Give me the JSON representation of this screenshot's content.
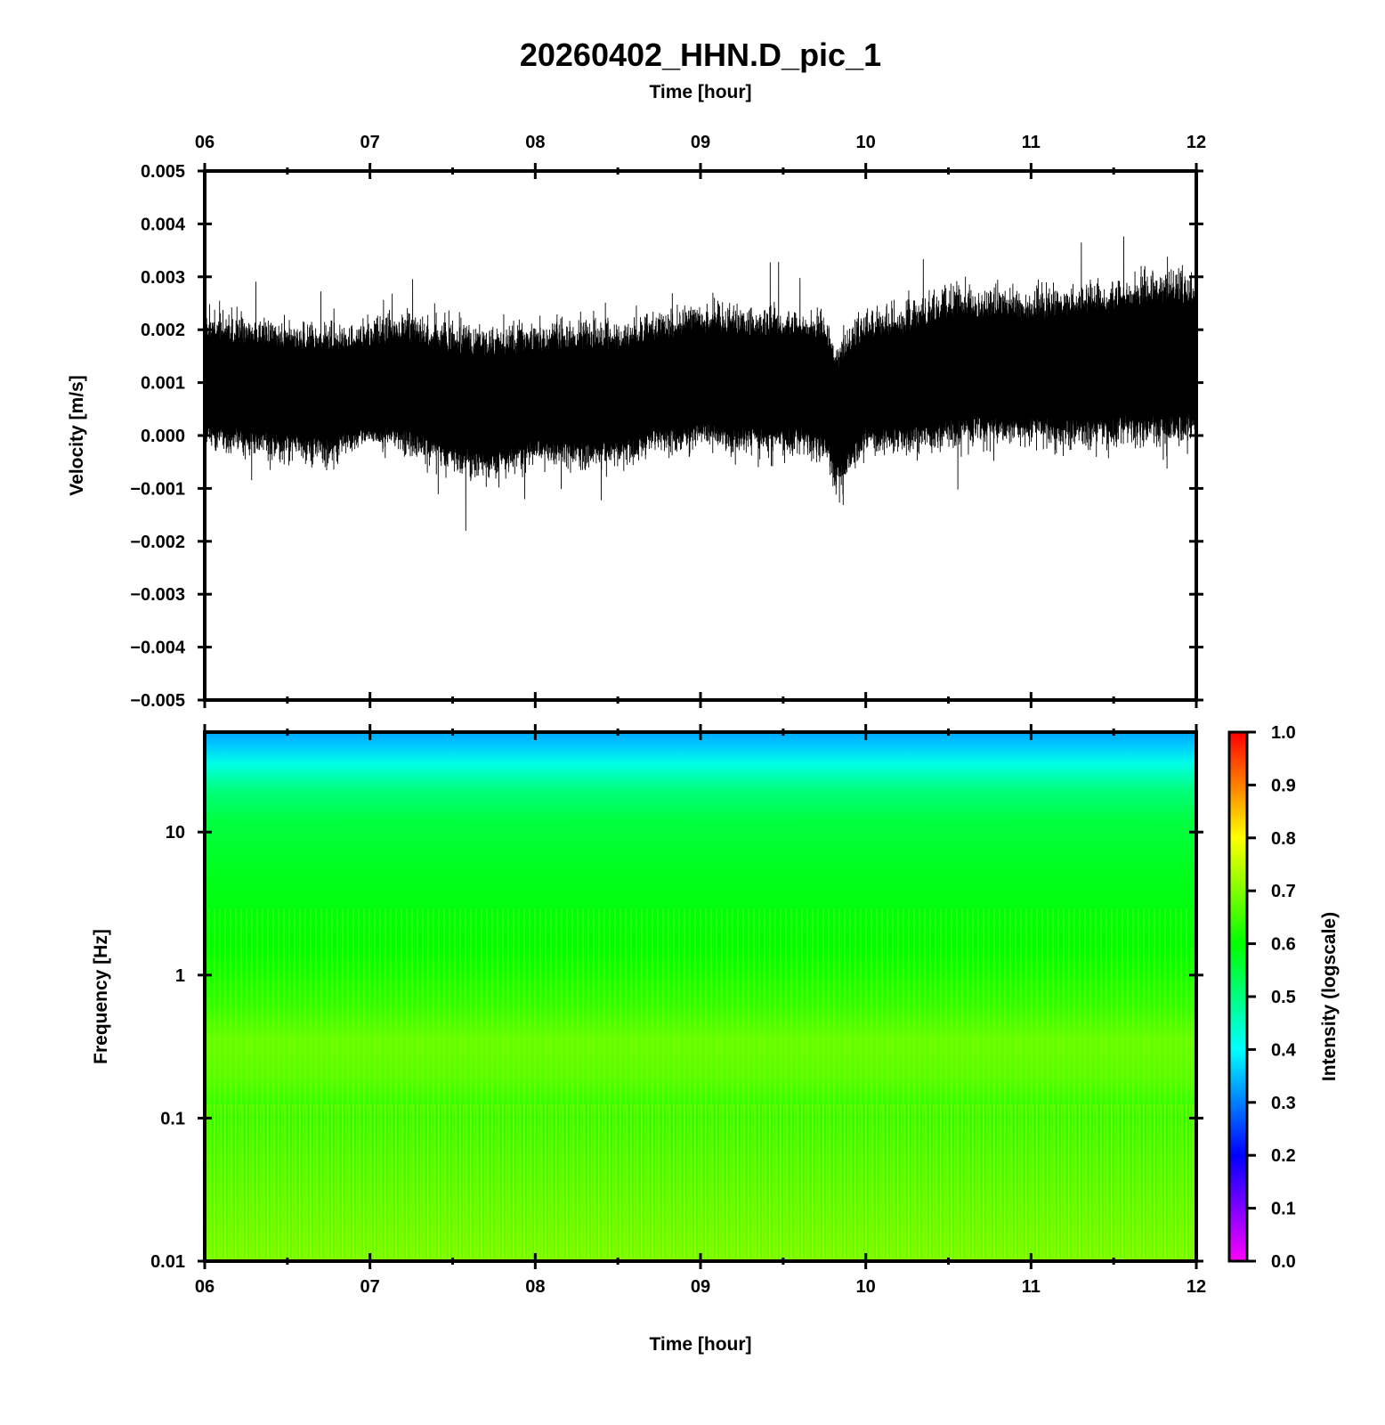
{
  "title": "20260402_HHN.D_pic_1",
  "chart_data": [
    {
      "type": "line",
      "panel": "waveform",
      "xlabel": "Time [hour]",
      "ylabel": "Velocity [m/s]",
      "x_ticks": [
        "06",
        "07",
        "08",
        "09",
        "10",
        "11",
        "12"
      ],
      "xlim": [
        6,
        12
      ],
      "y_ticks": [
        "0.005",
        "0.004",
        "0.003",
        "0.002",
        "0.001",
        "0.000",
        "−0.001",
        "−0.002",
        "−0.003",
        "−0.004",
        "−0.005"
      ],
      "ylim": [
        -0.005,
        0.005
      ],
      "grid": false,
      "series": [
        {
          "color": "#000000",
          "envelope": {
            "x": [
              6.0,
              6.25,
              6.5,
              6.75,
              7.0,
              7.25,
              7.5,
              7.75,
              8.0,
              8.25,
              8.5,
              8.75,
              9.0,
              9.25,
              9.5,
              9.75,
              9.82,
              10.0,
              10.25,
              10.5,
              10.75,
              11.0,
              11.25,
              11.5,
              11.75,
              12.0
            ],
            "center": [
              0.0009,
              0.0009,
              0.0008,
              0.0008,
              0.0008,
              0.0008,
              0.0006,
              0.0006,
              0.0007,
              0.0007,
              0.0007,
              0.0009,
              0.001,
              0.001,
              0.001,
              0.001,
              0.0004,
              0.0009,
              0.001,
              0.0012,
              0.0013,
              0.0013,
              0.0013,
              0.0013,
              0.0014,
              0.0014
            ],
            "upper": [
              0.0025,
              0.0024,
              0.0023,
              0.0022,
              0.0024,
              0.0025,
              0.0023,
              0.0022,
              0.0023,
              0.0024,
              0.0023,
              0.0025,
              0.0027,
              0.0026,
              0.0026,
              0.0025,
              0.0019,
              0.0026,
              0.0027,
              0.003,
              0.003,
              0.0029,
              0.003,
              0.0032,
              0.0034,
              0.0033
            ],
            "lower": [
              -0.0004,
              -0.0005,
              -0.0006,
              -0.0007,
              -0.0003,
              -0.0005,
              -0.0009,
              -0.001,
              -0.0007,
              -0.0008,
              -0.0007,
              -0.0005,
              -0.0004,
              -0.0005,
              -0.0005,
              -0.0007,
              -0.0013,
              -0.0005,
              -0.0005,
              -0.0004,
              -0.0004,
              -0.0004,
              -0.0005,
              -0.0004,
              -0.0004,
              -0.0004
            ],
            "peak_max": 0.0041,
            "peak_min": -0.0018
          }
        }
      ]
    },
    {
      "type": "heatmap",
      "panel": "spectrogram",
      "xlabel": "Time [hour]",
      "ylabel": "Frequency [Hz]",
      "x_ticks": [
        "06",
        "07",
        "08",
        "09",
        "10",
        "11",
        "12"
      ],
      "xlim": [
        6,
        12
      ],
      "y_scale": "log",
      "y_ticks": [
        "10",
        "1",
        "0.1",
        "0.01"
      ],
      "ylim": [
        0.01,
        50
      ],
      "color_scale": "rainbow",
      "intensity_by_frequency": [
        {
          "frequency": 50,
          "intensity": 0.33
        },
        {
          "frequency": 40,
          "intensity": 0.36
        },
        {
          "frequency": 30,
          "intensity": 0.42
        },
        {
          "frequency": 20,
          "intensity": 0.5
        },
        {
          "frequency": 12,
          "intensity": 0.55
        },
        {
          "frequency": 5,
          "intensity": 0.58
        },
        {
          "frequency": 1.5,
          "intensity": 0.6
        },
        {
          "frequency": 0.6,
          "intensity": 0.64
        },
        {
          "frequency": 0.35,
          "intensity": 0.68
        },
        {
          "frequency": 0.2,
          "intensity": 0.67
        },
        {
          "frequency": 0.1,
          "intensity": 0.63
        },
        {
          "frequency": 0.04,
          "intensity": 0.65
        },
        {
          "frequency": 0.01,
          "intensity": 0.68
        }
      ]
    }
  ],
  "colorbar": {
    "label": "Intensity (logscale)",
    "range": [
      0.0,
      1.0
    ],
    "ticks": [
      "1.0",
      "0.9",
      "0.8",
      "0.7",
      "0.6",
      "0.5",
      "0.4",
      "0.3",
      "0.2",
      "0.1",
      "0.0"
    ],
    "colors": [
      "#ff00ff",
      "#0000ff",
      "#00ffff",
      "#00ff00",
      "#ffff00",
      "#ff0000"
    ]
  }
}
